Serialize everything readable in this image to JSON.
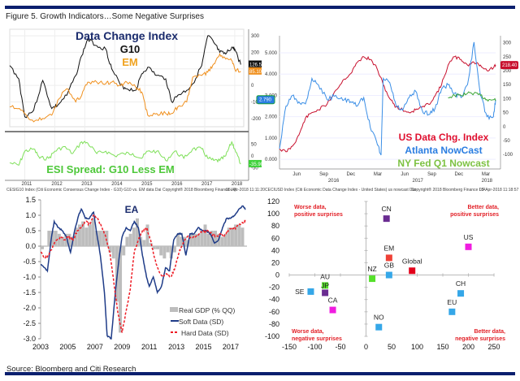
{
  "figure": {
    "title": "Figure 5. Growth Indicators…Some Negative Surprises",
    "source": "Source: Bloomberg and Citi Research",
    "rule_color": "#0a1f6e"
  },
  "chart_data": [
    {
      "id": "g10-em",
      "type": "line",
      "title": "Data Change Index",
      "legend": [
        "G10",
        "EM"
      ],
      "x_ticks": [
        "2011",
        "2012",
        "2013",
        "2014",
        "2015",
        "2016",
        "2017",
        "2018"
      ],
      "y_ticks": [
        "300",
        "200",
        "100",
        "0",
        "-100",
        "-200"
      ],
      "ylim": [
        -250,
        320
      ],
      "x_range": [
        2010.5,
        2018.3
      ],
      "series": [
        {
          "name": "G10",
          "color": "#111111",
          "x": [
            2010.5,
            2010.8,
            2011.0,
            2011.3,
            2011.6,
            2011.9,
            2012.1,
            2012.4,
            2012.7,
            2012.9,
            2013.1,
            2013.4,
            2013.7,
            2013.9,
            2014.2,
            2014.4,
            2014.7,
            2014.9,
            2015.1,
            2015.4,
            2015.7,
            2015.9,
            2016.1,
            2016.4,
            2016.6,
            2016.9,
            2017.1,
            2017.3,
            2017.5,
            2017.7,
            2017.9,
            2018.0,
            2018.2
          ],
          "y": [
            120,
            40,
            -190,
            -150,
            30,
            -140,
            -120,
            -60,
            60,
            180,
            280,
            240,
            220,
            100,
            0,
            -20,
            -30,
            70,
            110,
            60,
            40,
            -100,
            -60,
            -30,
            10,
            120,
            300,
            260,
            200,
            190,
            230,
            220,
            126
          ]
        },
        {
          "name": "EM",
          "color": "#f0901e",
          "x": [
            2010.5,
            2010.8,
            2011.0,
            2011.3,
            2011.6,
            2011.9,
            2012.1,
            2012.4,
            2012.7,
            2012.9,
            2013.1,
            2013.4,
            2013.7,
            2013.9,
            2014.2,
            2014.4,
            2014.7,
            2014.9,
            2015.1,
            2015.4,
            2015.7,
            2015.9,
            2016.1,
            2016.4,
            2016.6,
            2016.9,
            2017.1,
            2017.3,
            2017.5,
            2017.7,
            2017.9,
            2018.0,
            2018.2
          ],
          "y": [
            -130,
            -140,
            -170,
            -220,
            -200,
            -180,
            -90,
            -20,
            -100,
            -60,
            20,
            20,
            10,
            20,
            0,
            20,
            -10,
            -40,
            -180,
            -170,
            -170,
            -170,
            -130,
            -100,
            50,
            60,
            80,
            130,
            190,
            160,
            150,
            100,
            85
          ]
        }
      ],
      "badges": [
        {
          "series": "G10",
          "label": "126.50"
        },
        {
          "series": "EM",
          "label": "85.10"
        }
      ]
    },
    {
      "id": "esi-spread",
      "type": "line",
      "title": "ESI Spread: G10 Less EM",
      "x_ticks": [
        "2011",
        "2012",
        "2013",
        "2014",
        "2015",
        "2016",
        "2017",
        "2018"
      ],
      "y_ticks": [
        "50",
        "0",
        "-50"
      ],
      "ylim": [
        -70,
        90
      ],
      "x_range": [
        2010.5,
        2018.3
      ],
      "series": [
        {
          "name": "ESI Spread",
          "color": "#7fe05a",
          "x": [
            2010.5,
            2010.8,
            2011.0,
            2011.3,
            2011.5,
            2011.8,
            2012.0,
            2012.3,
            2012.6,
            2012.9,
            2013.1,
            2013.4,
            2013.7,
            2014.0,
            2014.3,
            2014.6,
            2014.9,
            2015.1,
            2015.4,
            2015.7,
            2016.0,
            2016.3,
            2016.6,
            2016.9,
            2017.1,
            2017.3,
            2017.5,
            2017.7,
            2017.9,
            2018.0,
            2018.2
          ],
          "y": [
            -30,
            -40,
            20,
            30,
            -10,
            -10,
            20,
            40,
            10,
            60,
            55,
            10,
            20,
            0,
            10,
            10,
            -10,
            20,
            20,
            -20,
            20,
            -10,
            30,
            30,
            -10,
            -20,
            -20,
            0,
            60,
            30,
            -35
          ]
        }
      ],
      "footer_left": "CESIG10 Index (Citi Economic Consensus Change Index - G10) G10 vs. EM data  Dai",
      "footer_mid": "Copyright® 2018 Bloomberg Finance L.P.",
      "footer_right": "05-Apr-2018 11:11:20",
      "badge": "-35.90"
    },
    {
      "id": "us-nowcast",
      "type": "line",
      "legend": [
        "US Data Chg. Index",
        "Atlanta NowCast",
        "NY Fed Q1 Nowcast"
      ],
      "x_ticks": [
        "Jun",
        "Sep",
        "Dec",
        "Mar",
        "Jun",
        "Sep",
        "Dec",
        "Mar"
      ],
      "year_ticks": [
        "2016",
        "2017",
        "2018"
      ],
      "y_left_ticks": [
        "5.000",
        "4.000",
        "3.000",
        "2.000",
        "1.000",
        "0.000"
      ],
      "y_right_ticks": [
        "300",
        "250",
        "200",
        "150",
        "100",
        "50",
        "0",
        "-50",
        "-100"
      ],
      "y_left_range": [
        -0.3,
        5.8
      ],
      "y_right_range": [
        -140,
        325
      ],
      "series": [
        {
          "name": "US Data Chg. Index",
          "color": "#c8102e",
          "axis": "right",
          "x": [
            0,
            3,
            6,
            9,
            12,
            15,
            18,
            22,
            26,
            30,
            33,
            36,
            39,
            42,
            45,
            48,
            51,
            54,
            57,
            60,
            63,
            66,
            69,
            72,
            75,
            78,
            81,
            84,
            87,
            90,
            93,
            96,
            99,
            100
          ],
          "y": [
            -80,
            -90,
            -70,
            -30,
            30,
            50,
            60,
            80,
            130,
            170,
            190,
            230,
            250,
            240,
            210,
            150,
            100,
            70,
            60,
            50,
            60,
            70,
            80,
            110,
            150,
            220,
            250,
            240,
            220,
            230,
            220,
            200,
            210,
            220
          ]
        },
        {
          "name": "Atlanta NowCast",
          "color": "#3a8ee6",
          "axis": "left",
          "x": [
            0,
            3,
            6,
            9,
            12,
            15,
            18,
            22,
            26,
            30,
            33,
            36,
            39,
            42,
            45,
            47,
            48,
            51,
            54,
            57,
            60,
            63,
            66,
            69,
            72,
            75,
            78,
            81,
            84,
            87,
            90,
            93,
            96,
            99,
            100
          ],
          "y": [
            0.5,
            2.5,
            3.0,
            2.7,
            2.6,
            3.8,
            3.5,
            2.8,
            3.0,
            2.8,
            2.7,
            2.5,
            2.9,
            1.5,
            0.8,
            0.2,
            3.8,
            3.6,
            2.5,
            2.3,
            2.9,
            3.2,
            2.3,
            2.1,
            2.4,
            3.3,
            3.5,
            3.1,
            2.9,
            3.5,
            5.5,
            3.0,
            2.0,
            2.0,
            2.8
          ]
        },
        {
          "name": "NY Fed Q1 Nowcast",
          "color": "#3aa535",
          "axis": "left",
          "x": [
            78,
            81,
            84,
            87,
            90,
            93,
            96,
            99,
            100
          ],
          "y": [
            2.9,
            3.0,
            3.0,
            3.1,
            3.1,
            3.0,
            2.8,
            2.8,
            2.8
          ]
        }
      ],
      "badges": [
        {
          "series": "Atlanta NowCast",
          "label": "2.790"
        },
        {
          "series": "US Data Chg. Index",
          "label": "218.40"
        }
      ],
      "footer_left": "CECIUSD Index (Citi Economic Data Change Index - United States) us nowcast  Dai",
      "footer_mid": "Copyright® 2018 Bloomberg Finance L.P.",
      "footer_right": "05-Apr-2018 11:18:57"
    },
    {
      "id": "ea",
      "type": "bar",
      "title": "EA",
      "x_ticks": [
        "2003",
        "2005",
        "2007",
        "2009",
        "2011",
        "2013",
        "2015",
        "2017"
      ],
      "y_ticks": [
        "1.5",
        "1.0",
        "0.5",
        "0.0",
        "-0.5",
        "-1.0",
        "-1.5",
        "-2.0",
        "-2.5",
        "-3.0"
      ],
      "ylim": [
        -3.0,
        1.5
      ],
      "x_range": [
        2003,
        2018.2
      ],
      "legend": [
        "Real GDP (% QQ)",
        "Soft Data (SD)",
        "Hard Data (SD)"
      ],
      "gdp_quarters": {
        "start": 2003.0,
        "step": 0.25,
        "values": [
          -0.1,
          0.0,
          0.5,
          0.5,
          0.5,
          0.4,
          0.3,
          0.4,
          0.4,
          0.3,
          0.6,
          0.7,
          0.8,
          0.6,
          0.7,
          0.9,
          0.5,
          0.5,
          0.5,
          0.5,
          -0.2,
          -0.4,
          -1.8,
          -2.8,
          -0.3,
          0.3,
          0.4,
          0.6,
          0.9,
          0.3,
          0.2,
          0.7,
          0.1,
          -0.1,
          -0.1,
          -0.3,
          -0.4,
          -0.2,
          -0.4,
          -0.2,
          0.4,
          0.3,
          0.3,
          0.2,
          0.4,
          0.4,
          0.4,
          0.5,
          0.7,
          0.4,
          0.5,
          0.5,
          0.4,
          0.3,
          0.4,
          0.6,
          0.6,
          0.7,
          0.7,
          0.6
        ]
      },
      "series": [
        {
          "name": "Soft Data (SD)",
          "color": "#1f3c88",
          "x": [
            2003,
            2003.3,
            2003.5,
            2003.8,
            2004.0,
            2004.3,
            2004.6,
            2004.9,
            2005.2,
            2005.5,
            2005.8,
            2006.0,
            2006.3,
            2006.6,
            2006.9,
            2007.1,
            2007.4,
            2007.7,
            2007.9,
            2008.2,
            2008.5,
            2008.8,
            2009.0,
            2009.3,
            2009.6,
            2009.9,
            2010.2,
            2010.5,
            2010.8,
            2011.0,
            2011.3,
            2011.6,
            2011.9,
            2012.2,
            2012.5,
            2012.8,
            2013.1,
            2013.4,
            2013.7,
            2014.0,
            2014.3,
            2014.6,
            2014.9,
            2015.2,
            2015.5,
            2015.8,
            2016.1,
            2016.4,
            2016.7,
            2017.0,
            2017.3,
            2017.6,
            2017.9,
            2018.1
          ],
          "y": [
            -0.6,
            -0.7,
            -0.8,
            0.3,
            0.8,
            0.6,
            0.5,
            0.3,
            -0.2,
            0.5,
            1.0,
            1.2,
            0.9,
            0.9,
            1.1,
            0.5,
            -0.3,
            -1.5,
            -2.9,
            -3.0,
            -1.5,
            -0.3,
            0.3,
            0.6,
            0.5,
            0.8,
            0.6,
            -0.3,
            -1.0,
            -1.3,
            -1.0,
            -1.5,
            -1.3,
            -0.7,
            -0.8,
            0.2,
            0.4,
            0.4,
            -0.3,
            0.4,
            0.4,
            0.6,
            0.5,
            0.5,
            0.4,
            0.1,
            0.2,
            0.6,
            0.9,
            0.9,
            1.0,
            1.2,
            1.3,
            1.2
          ]
        },
        {
          "name": "Hard Data (SD)",
          "color": "#ee1c25",
          "x": [
            2003,
            2003.3,
            2003.6,
            2003.9,
            2004.2,
            2004.5,
            2004.8,
            2005.1,
            2005.4,
            2005.7,
            2006.0,
            2006.3,
            2006.6,
            2006.9,
            2007.2,
            2007.5,
            2007.8,
            2008.1,
            2008.4,
            2008.7,
            2009.0,
            2009.3,
            2009.6,
            2009.9,
            2010.2,
            2010.5,
            2010.8,
            2011.1,
            2011.4,
            2011.7,
            2012.0,
            2012.3,
            2012.6,
            2012.9,
            2013.2,
            2013.5,
            2013.8,
            2014.1,
            2014.4,
            2014.7,
            2015.0,
            2015.3,
            2015.6,
            2015.9,
            2016.2,
            2016.5,
            2016.8,
            2017.1,
            2017.4,
            2017.7,
            2018.0,
            2018.1
          ],
          "y": [
            -0.2,
            -0.4,
            -0.3,
            0.0,
            0.2,
            0.3,
            0.2,
            0.3,
            0.2,
            0.5,
            0.6,
            0.8,
            0.7,
            1.0,
            0.9,
            0.6,
            0.3,
            -0.2,
            -1.2,
            -2.2,
            -2.8,
            -2.1,
            -1.4,
            -0.2,
            0.2,
            0.5,
            0.6,
            0.2,
            -0.4,
            -0.8,
            -1.0,
            -0.9,
            -1.0,
            -0.7,
            -0.2,
            0.1,
            0.3,
            0.3,
            0.3,
            0.4,
            0.5,
            0.5,
            0.4,
            0.3,
            0.4,
            0.3,
            0.5,
            0.6,
            0.6,
            0.7,
            0.8,
            0.85
          ]
        }
      ]
    },
    {
      "id": "surprise-scatter",
      "type": "scatter",
      "x_ticks": [
        -150,
        -100,
        -50,
        0,
        50,
        100,
        150,
        200,
        250
      ],
      "y_ticks": [
        120,
        100,
        80,
        60,
        40,
        20,
        0,
        -20,
        -40,
        -60,
        -80,
        -100
      ],
      "xlim": [
        -150,
        250
      ],
      "ylim": [
        -100,
        120
      ],
      "quadrant_labels": {
        "top_left": [
          "Worse data,",
          "positive surprises"
        ],
        "top_right": [
          "Better data,",
          "positive surprises"
        ],
        "bottom_left": [
          "Worse data,",
          "negative surprises"
        ],
        "bottom_right": [
          "Better data,",
          "negative surprises"
        ]
      },
      "points": [
        {
          "label": "CN",
          "x": 40,
          "y": 92,
          "color": "#6a2c91"
        },
        {
          "label": "EM",
          "x": 45,
          "y": 28,
          "color": "#ef4136"
        },
        {
          "label": "GB",
          "x": 45,
          "y": 0,
          "color": "#35a7e8"
        },
        {
          "label": "Global",
          "x": 90,
          "y": 7,
          "color": "#e2001a"
        },
        {
          "label": "US",
          "x": 200,
          "y": 46,
          "color": "#f01ce0"
        },
        {
          "label": "NZ",
          "x": 12,
          "y": -6,
          "color": "#55e02a"
        },
        {
          "label": "AU",
          "x": -80,
          "y": -17,
          "color": "#55e02a"
        },
        {
          "label": "JP",
          "x": -80,
          "y": -29,
          "color": "#6a2c91"
        },
        {
          "label": "SE",
          "x": -108,
          "y": -27,
          "color": "#35a7e8"
        },
        {
          "label": "CA",
          "x": -65,
          "y": -57,
          "color": "#f01ce0"
        },
        {
          "label": "NO",
          "x": 25,
          "y": -85,
          "color": "#35a7e8"
        },
        {
          "label": "CH",
          "x": 185,
          "y": -30,
          "color": "#35a7e8"
        },
        {
          "label": "EU",
          "x": 168,
          "y": -60,
          "color": "#35a7e8"
        }
      ]
    }
  ]
}
